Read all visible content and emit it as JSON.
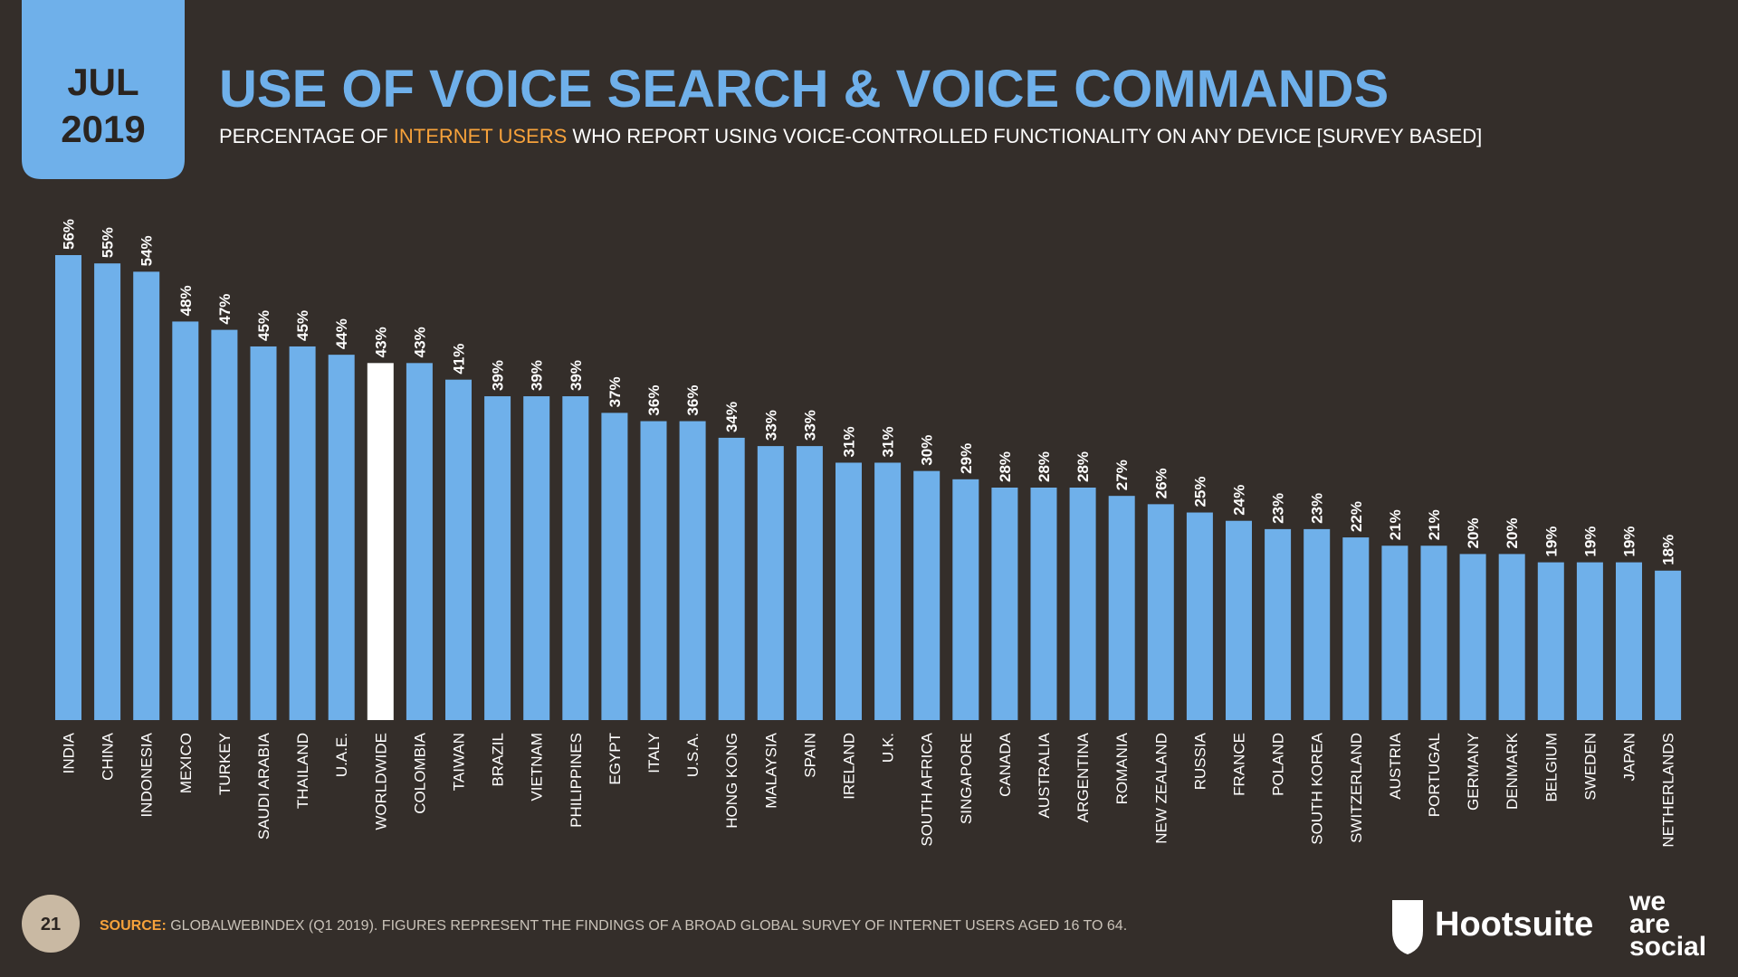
{
  "header": {
    "month": "JUL",
    "year": "2019",
    "title": "USE OF VOICE SEARCH & VOICE COMMANDS",
    "subtitle_start": "PERCENTAGE OF",
    "subtitle_highlight": "INTERNET USERS",
    "subtitle_end": "WHO REPORT USING VOICE-CONTROLLED FUNCTIONALITY ON ANY DEVICE [SURVEY BASED]"
  },
  "chart_data": {
    "type": "bar",
    "categories": [
      "INDIA",
      "CHINA",
      "INDONESIA",
      "MEXICO",
      "TURKEY",
      "SAUDI ARABIA",
      "THAILAND",
      "U.A.E.",
      "WORLDWIDE",
      "COLOMBIA",
      "TAIWAN",
      "BRAZIL",
      "VIETNAM",
      "PHILIPPINES",
      "EGYPT",
      "ITALY",
      "U.S.A.",
      "HONG KONG",
      "MALAYSIA",
      "SPAIN",
      "IRELAND",
      "U.K.",
      "SOUTH AFRICA",
      "SINGAPORE",
      "CANADA",
      "AUSTRALIA",
      "ARGENTINA",
      "ROMANIA",
      "NEW ZEALAND",
      "RUSSIA",
      "FRANCE",
      "POLAND",
      "SOUTH KOREA",
      "SWITZERLAND",
      "AUSTRIA",
      "PORTUGAL",
      "GERMANY",
      "DENMARK",
      "BELGIUM",
      "SWEDEN",
      "JAPAN",
      "NETHERLANDS"
    ],
    "values": [
      56,
      55,
      54,
      48,
      47,
      45,
      45,
      44,
      43,
      43,
      41,
      39,
      39,
      39,
      37,
      36,
      36,
      34,
      33,
      33,
      31,
      31,
      30,
      29,
      28,
      28,
      28,
      27,
      26,
      25,
      24,
      23,
      23,
      22,
      21,
      21,
      20,
      20,
      19,
      19,
      19,
      18
    ],
    "value_labels": [
      "56%",
      "55%",
      "54%",
      "48%",
      "47%",
      "45%",
      "45%",
      "44%",
      "43%",
      "43%",
      "41%",
      "39%",
      "39%",
      "39%",
      "37%",
      "36%",
      "36%",
      "34%",
      "33%",
      "33%",
      "31%",
      "31%",
      "30%",
      "29%",
      "28%",
      "28%",
      "28%",
      "27%",
      "26%",
      "25%",
      "24%",
      "23%",
      "23%",
      "22%",
      "21%",
      "21%",
      "20%",
      "20%",
      "19%",
      "19%",
      "19%",
      "18%"
    ],
    "color": "#6fb0ea",
    "highlight_category": "WORLDWIDE",
    "highlight_color": "#ffffff",
    "ylim": [
      0,
      56
    ]
  },
  "footer": {
    "page": "21",
    "source_label": "SOURCE:",
    "source_text": "GLOBALWEBINDEX (Q1 2019). FIGURES REPRESENT THE FINDINGS OF A BROAD GLOBAL SURVEY OF INTERNET USERS AGED 16 TO 64.",
    "logo_hootsuite": "Hootsuite",
    "logo_was_1": "we",
    "logo_was_2": "are",
    "logo_was_3": "social"
  }
}
